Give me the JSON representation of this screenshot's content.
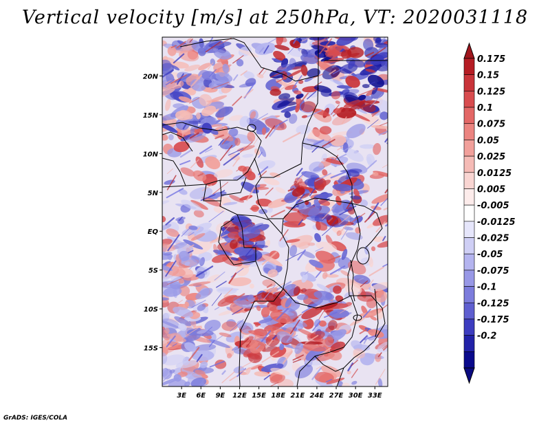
{
  "title": "Vertical velocity [m/s] at 250hPa, VT: 2020031118",
  "footer": "GrADS: IGES/COLA",
  "map": {
    "lon_range": [
      0,
      35
    ],
    "lat_range": [
      -20,
      25
    ],
    "x_ticks": [
      "3E",
      "6E",
      "9E",
      "12E",
      "15E",
      "18E",
      "21E",
      "24E",
      "27E",
      "30E",
      "33E"
    ],
    "x_tick_values": [
      3,
      6,
      9,
      12,
      15,
      18,
      21,
      24,
      27,
      30,
      33
    ],
    "y_ticks": [
      "20N",
      "15N",
      "10N",
      "5N",
      "EQ",
      "5S",
      "10S",
      "15S"
    ],
    "y_tick_values": [
      20,
      15,
      10,
      5,
      0,
      -5,
      -10,
      -15
    ]
  },
  "colorbar": {
    "levels": [
      "0.175",
      "0.15",
      "0.125",
      "0.1",
      "0.075",
      "0.05",
      "0.025",
      "0.0125",
      "0.005",
      "-0.005",
      "-0.0125",
      "-0.025",
      "-0.05",
      "-0.075",
      "-0.1",
      "-0.125",
      "-0.175",
      "-0.2"
    ],
    "colors": [
      "#b51d24",
      "#c9343a",
      "#d84c4f",
      "#e36766",
      "#eb8480",
      "#f1a09b",
      "#f5bbb6",
      "#f9d5d2",
      "#fdeceb",
      "#ffffff",
      "#e6e6fb",
      "#cfcff5",
      "#b4b4ef",
      "#9898e6",
      "#7c7cdc",
      "#5f5fd0",
      "#3d3dc0",
      "#2222a8",
      "#0a0a8c"
    ],
    "top_color": "#a0161d",
    "bottom_color": "#0a0a80"
  },
  "field_colors": {
    "background": "#e9e3f2",
    "lines": [
      "#d35a5a",
      "#6d6de0",
      "#f3b3ad",
      "#9c9ce8",
      "#b72a2f",
      "#3a3ac0"
    ]
  }
}
